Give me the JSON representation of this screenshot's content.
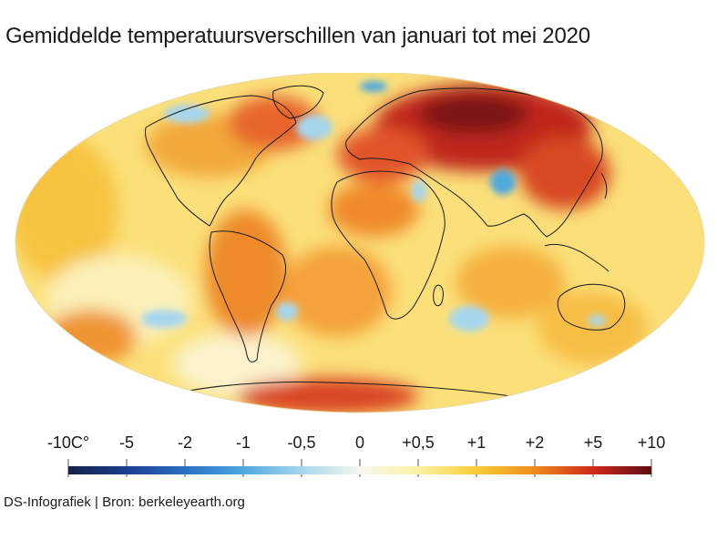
{
  "title": "Gemiddelde temperatuursverschillen van januari tot mei 2020",
  "legend": {
    "labels": [
      "-10C°",
      "-5",
      "-2",
      "-1",
      "-0,5",
      "0",
      "+0,5",
      "+1",
      "+2",
      "+5",
      "+10"
    ],
    "colors": [
      "#14204a",
      "#1b3e8e",
      "#2a6fc4",
      "#4fa7df",
      "#a6d6ee",
      "#f7f6ef",
      "#fbf1a2",
      "#f7cd36",
      "#ee8a1d",
      "#cf2a1a",
      "#5c0c12"
    ]
  },
  "credit": "DS-Infografiek | Bron: berkeleyearth.org"
}
